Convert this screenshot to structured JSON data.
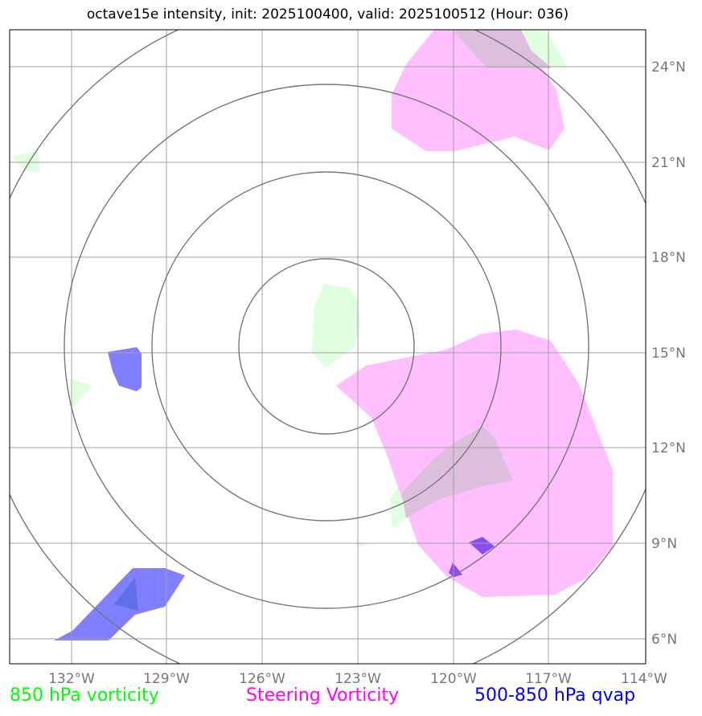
{
  "title": "octave15e intensity, init: 2025100400, valid: 2025100512 (Hour: 036)",
  "map": {
    "lon_labels": [
      "132°W",
      "129°W",
      "126°W",
      "123°W",
      "120°W",
      "117°W",
      "114°W"
    ],
    "lat_labels": [
      "24°N",
      "21°N",
      "18°N",
      "15°N",
      "12°N",
      "9°N",
      "6°N"
    ],
    "lon_range": [
      -134,
      -114
    ],
    "lat_range": [
      5,
      25
    ],
    "storm_center": {
      "lon": -124.0,
      "lat": 15.0
    },
    "range_rings": 4
  },
  "legend": [
    {
      "label": "850 hPa vorticity",
      "color": "#00ff00"
    },
    {
      "label": "Steering Vorticity",
      "color": "#ff00ff"
    },
    {
      "label": "500-850 hPa qvap",
      "color": "#0000ff"
    }
  ],
  "colors": {
    "vorticity_fill": "#e0ffe0",
    "steering_fill": "#ffbfff",
    "qvap_fill": "#7f7fff",
    "overlap_fill": "#dcbfdc",
    "grid": "#a0a0a0",
    "rings": "#777777",
    "tick_text": "#777777"
  }
}
